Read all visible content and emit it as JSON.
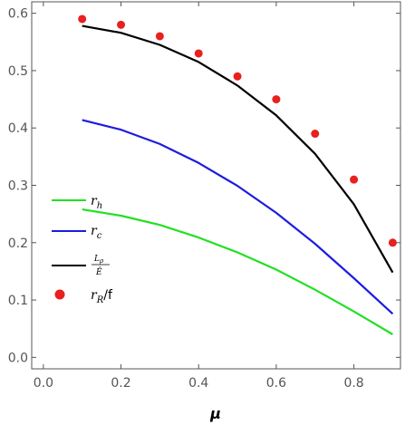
{
  "chart_data": {
    "type": "line",
    "xlabel": "μ",
    "ylabel": "",
    "title": "",
    "xlim": [
      -0.03,
      0.92
    ],
    "ylim": [
      -0.02,
      0.62
    ],
    "x_ticks": [
      "0.0",
      "0.2",
      "0.4",
      "0.6",
      "0.8"
    ],
    "y_ticks": [
      "0.0",
      "0.1",
      "0.2",
      "0.3",
      "0.4",
      "0.5",
      "0.6"
    ],
    "x_tick_values": [
      0.0,
      0.2,
      0.4,
      0.6,
      0.8
    ],
    "y_tick_values": [
      0.0,
      0.1,
      0.2,
      0.3,
      0.4,
      0.5,
      0.6
    ],
    "grid": false,
    "legend_position": "left",
    "series": [
      {
        "key": "rh",
        "kind": "line",
        "color": "#22e022",
        "x": [
          0.1,
          0.2,
          0.3,
          0.4,
          0.5,
          0.6,
          0.7,
          0.8,
          0.9
        ],
        "values": [
          0.258,
          0.247,
          0.231,
          0.209,
          0.183,
          0.153,
          0.118,
          0.08,
          0.04
        ]
      },
      {
        "key": "rc",
        "kind": "line",
        "color": "#1c1ce0",
        "x": [
          0.1,
          0.2,
          0.3,
          0.4,
          0.5,
          0.6,
          0.7,
          0.8,
          0.9
        ],
        "values": [
          0.414,
          0.397,
          0.372,
          0.339,
          0.299,
          0.252,
          0.198,
          0.138,
          0.076
        ]
      },
      {
        "key": "lrho",
        "kind": "line",
        "color": "#000000",
        "x": [
          0.1,
          0.2,
          0.3,
          0.4,
          0.5,
          0.6,
          0.7,
          0.8,
          0.9
        ],
        "values": [
          0.578,
          0.566,
          0.545,
          0.515,
          0.474,
          0.422,
          0.355,
          0.267,
          0.148
        ]
      },
      {
        "key": "rR",
        "kind": "scatter",
        "color": "#e8201e",
        "x": [
          0.1,
          0.2,
          0.3,
          0.4,
          0.5,
          0.6,
          0.7,
          0.8,
          0.9
        ],
        "values": [
          0.59,
          0.58,
          0.56,
          0.53,
          0.49,
          0.45,
          0.39,
          0.31,
          0.2
        ]
      }
    ],
    "legend": {
      "rh": {
        "main": "r",
        "sub": "h"
      },
      "rc": {
        "main": "r",
        "sub": "c"
      },
      "lrho": {
        "num_main": "L",
        "num_sub": "ρ",
        "den": "Ê"
      },
      "rR": {
        "main": "r",
        "sub": "R",
        "suffix": "/f"
      }
    }
  }
}
